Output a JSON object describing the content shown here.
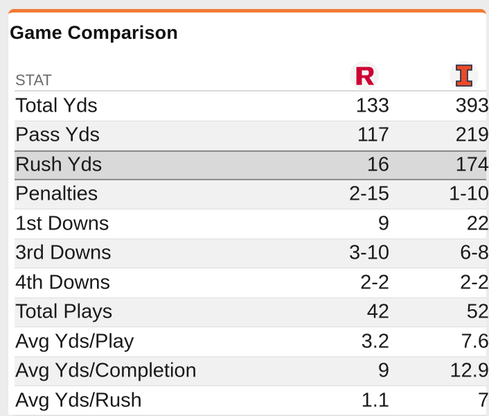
{
  "panel": {
    "title": "Game Comparison",
    "stat_header": "STAT",
    "team1": {
      "logo_icon": "rutgers-r-logo-icon",
      "color": "#cc0033"
    },
    "team2": {
      "logo_icon": "illinois-i-logo-icon",
      "color": "#e84a27"
    },
    "accent_color": "#f07a35"
  },
  "rows": [
    {
      "stat": "Total Yds",
      "team1": "133",
      "team2": "393"
    },
    {
      "stat": "Pass Yds",
      "team1": "117",
      "team2": "219"
    },
    {
      "stat": "Rush Yds",
      "team1": "16",
      "team2": "174",
      "highlighted": true
    },
    {
      "stat": "Penalties",
      "team1": "2-15",
      "team2": "1-10"
    },
    {
      "stat": "1st Downs",
      "team1": "9",
      "team2": "22"
    },
    {
      "stat": "3rd Downs",
      "team1": "3-10",
      "team2": "6-8"
    },
    {
      "stat": "4th Downs",
      "team1": "2-2",
      "team2": "2-2"
    },
    {
      "stat": "Total Plays",
      "team1": "42",
      "team2": "52"
    },
    {
      "stat": "Avg Yds/Play",
      "team1": "3.2",
      "team2": "7.6"
    },
    {
      "stat": "Avg Yds/Completion",
      "team1": "9",
      "team2": "12.9"
    },
    {
      "stat": "Avg Yds/Rush",
      "team1": "1.1",
      "team2": "7"
    }
  ]
}
